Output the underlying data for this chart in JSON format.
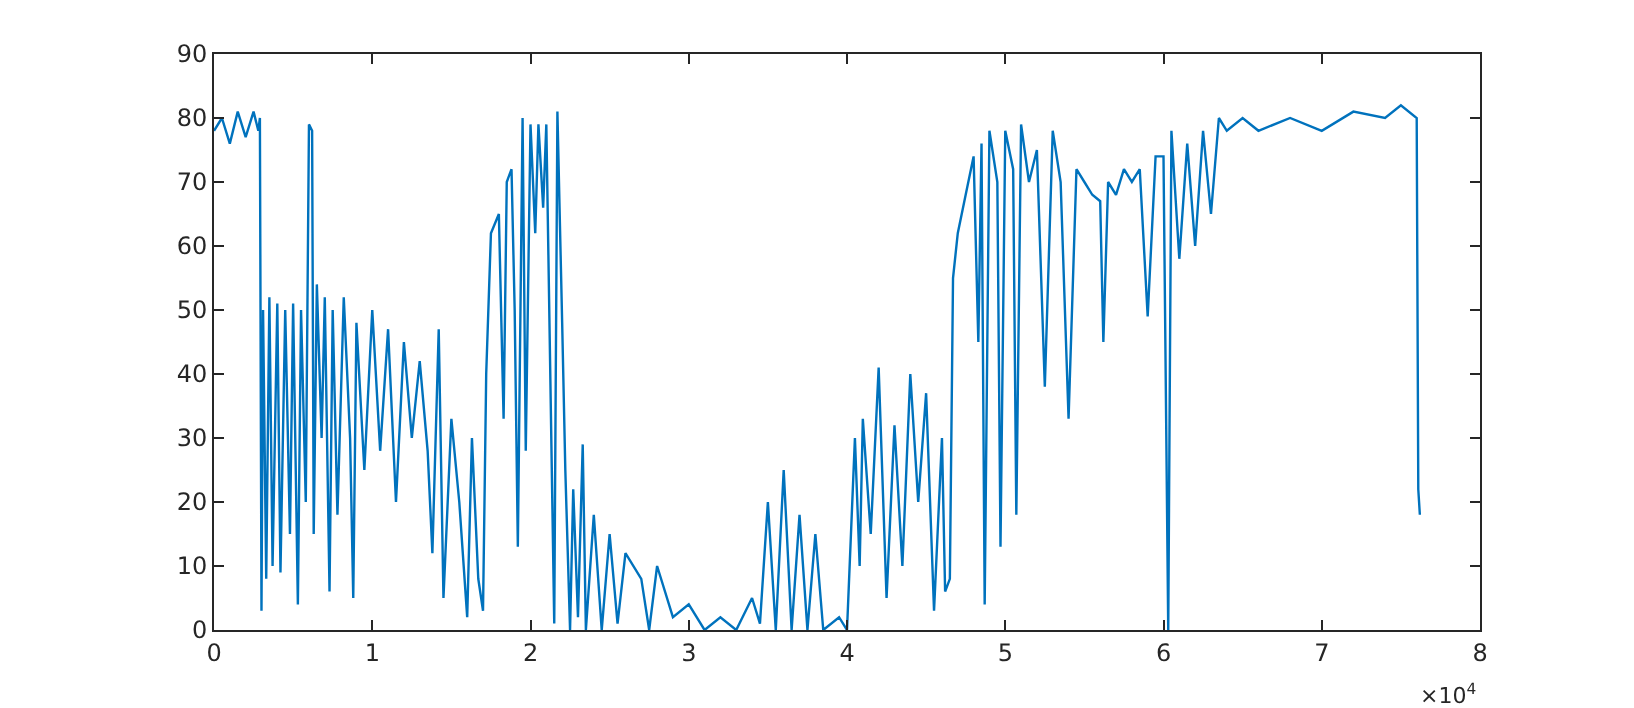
{
  "chart_data": {
    "type": "line",
    "x": [
      0,
      0.05,
      0.1,
      0.15,
      0.2,
      0.25,
      0.28,
      0.29,
      0.3,
      0.31,
      0.33,
      0.35,
      0.37,
      0.4,
      0.42,
      0.45,
      0.48,
      0.5,
      0.53,
      0.55,
      0.58,
      0.6,
      0.62,
      0.63,
      0.65,
      0.68,
      0.7,
      0.73,
      0.75,
      0.78,
      0.82,
      0.86,
      0.88,
      0.9,
      0.95,
      1.0,
      1.05,
      1.1,
      1.15,
      1.2,
      1.25,
      1.3,
      1.35,
      1.38,
      1.42,
      1.45,
      1.5,
      1.55,
      1.6,
      1.63,
      1.67,
      1.7,
      1.72,
      1.75,
      1.8,
      1.83,
      1.85,
      1.88,
      1.9,
      1.92,
      1.95,
      1.97,
      2.0,
      2.03,
      2.05,
      2.08,
      2.1,
      2.15,
      2.17,
      2.2,
      2.22,
      2.25,
      2.27,
      2.3,
      2.33,
      2.35,
      2.4,
      2.45,
      2.5,
      2.55,
      2.6,
      2.7,
      2.75,
      2.8,
      2.9,
      3.0,
      3.1,
      3.2,
      3.3,
      3.4,
      3.45,
      3.5,
      3.55,
      3.6,
      3.65,
      3.7,
      3.75,
      3.8,
      3.85,
      3.95,
      4.0,
      4.05,
      4.08,
      4.1,
      4.15,
      4.2,
      4.25,
      4.3,
      4.35,
      4.4,
      4.45,
      4.5,
      4.55,
      4.6,
      4.62,
      4.65,
      4.67,
      4.7,
      4.75,
      4.8,
      4.83,
      4.85,
      4.87,
      4.9,
      4.95,
      4.97,
      5.0,
      5.05,
      5.07,
      5.1,
      5.15,
      5.2,
      5.25,
      5.3,
      5.35,
      5.4,
      5.45,
      5.5,
      5.55,
      5.6,
      5.62,
      5.65,
      5.7,
      5.75,
      5.8,
      5.85,
      5.9,
      5.95,
      6.0,
      6.03,
      6.05,
      6.1,
      6.15,
      6.2,
      6.25,
      6.3,
      6.35,
      6.4,
      6.5,
      6.6,
      6.8,
      7.0,
      7.2,
      7.4,
      7.5,
      7.6,
      7.61,
      7.62
    ],
    "series": [
      {
        "color": "#0072bd",
        "values": [
          78,
          80,
          76,
          81,
          77,
          81,
          78,
          80,
          3,
          50,
          8,
          52,
          10,
          51,
          9,
          50,
          15,
          51,
          4,
          50,
          20,
          79,
          78,
          15,
          54,
          30,
          52,
          6,
          50,
          18,
          52,
          30,
          5,
          48,
          25,
          50,
          28,
          47,
          20,
          45,
          30,
          42,
          28,
          12,
          47,
          5,
          33,
          20,
          2,
          30,
          8,
          3,
          40,
          62,
          65,
          33,
          70,
          72,
          50,
          13,
          80,
          28,
          79,
          62,
          79,
          66,
          79,
          1,
          81,
          48,
          25,
          0,
          22,
          2,
          29,
          0,
          18,
          0,
          15,
          1,
          12,
          8,
          0,
          10,
          2,
          4,
          0,
          2,
          0,
          5,
          1,
          20,
          0,
          25,
          0,
          18,
          0,
          15,
          0,
          2,
          0,
          30,
          10,
          33,
          15,
          41,
          5,
          32,
          10,
          40,
          20,
          37,
          3,
          30,
          6,
          8,
          55,
          62,
          68,
          74,
          45,
          76,
          4,
          78,
          70,
          13,
          78,
          72,
          18,
          79,
          70,
          75,
          38,
          78,
          70,
          33,
          72,
          70,
          68,
          67,
          45,
          70,
          68,
          72,
          70,
          72,
          49,
          74,
          74,
          0,
          78,
          58,
          76,
          60,
          78,
          65,
          80,
          78,
          80,
          78,
          80,
          78,
          81,
          80,
          82,
          80,
          22,
          18
        ]
      }
    ],
    "xlim": [
      0,
      8
    ],
    "xticks": [
      0,
      1,
      2,
      3,
      4,
      5,
      6,
      7,
      8
    ],
    "ylim": [
      0,
      90
    ],
    "yticks": [
      0,
      10,
      20,
      30,
      40,
      50,
      60,
      70,
      80,
      90
    ],
    "marker": "none",
    "line_style": "solid",
    "annotations": [
      "×10$^{4}$"
    ]
  }
}
